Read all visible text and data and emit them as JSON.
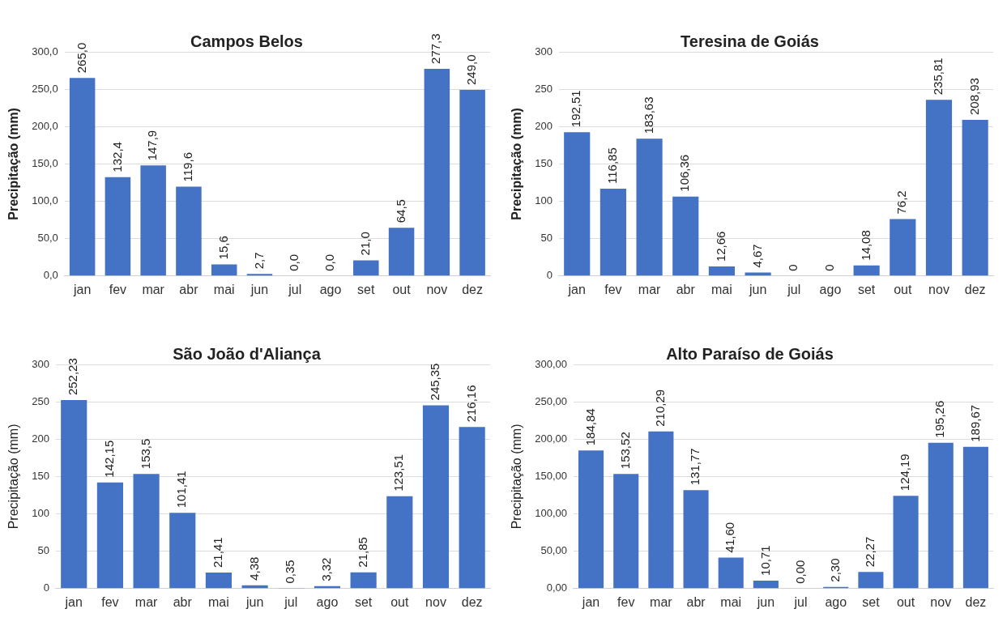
{
  "chart_data": [
    {
      "type": "bar",
      "title": "Campos Belos",
      "ylabel": "Precipitação (mm)",
      "categories": [
        "jan",
        "fev",
        "mar",
        "abr",
        "mai",
        "jun",
        "jul",
        "ago",
        "set",
        "out",
        "nov",
        "dez"
      ],
      "series": [
        {
          "color": "#4472c4",
          "values": [
            265.0,
            132.4,
            147.9,
            119.6,
            15.6,
            2.7,
            0.0,
            0.0,
            21.0,
            64.5,
            277.3,
            249.0
          ],
          "value_labels": [
            "265,0",
            "132,4",
            "147,9",
            "119,6",
            "15,6",
            "2,7",
            "0,0",
            "0,0",
            "21,0",
            "64,5",
            "277,3",
            "249,0"
          ]
        }
      ],
      "ylim": [
        0,
        300
      ],
      "yticks": [
        {
          "value": 0,
          "label": "0,0"
        },
        {
          "value": 50,
          "label": "50,0"
        },
        {
          "value": 100,
          "label": "100,0"
        },
        {
          "value": 150,
          "label": "150,0"
        },
        {
          "value": 200,
          "label": "200,0"
        },
        {
          "value": 250,
          "label": "250,0"
        },
        {
          "value": 300,
          "label": "300,0"
        }
      ],
      "grid": "y",
      "legend": false
    },
    {
      "type": "bar",
      "title": "Teresina de Goiás",
      "ylabel": "Precipitação (mm)",
      "categories": [
        "jan",
        "fev",
        "mar",
        "abr",
        "mai",
        "jun",
        "jul",
        "ago",
        "set",
        "out",
        "nov",
        "dez"
      ],
      "series": [
        {
          "color": "#4472c4",
          "values": [
            192.51,
            116.85,
            183.63,
            106.36,
            12.66,
            4.67,
            0,
            0,
            14.08,
            76.2,
            235.81,
            208.93
          ],
          "value_labels": [
            "192,51",
            "116,85",
            "183,63",
            "106,36",
            "12,66",
            "4,67",
            "0",
            "0",
            "14,08",
            "76,2",
            "235,81",
            "208,93"
          ]
        }
      ],
      "ylim": [
        0,
        300
      ],
      "yticks": [
        0,
        50,
        100,
        150,
        200,
        250,
        300
      ],
      "grid": "y",
      "legend": false
    },
    {
      "type": "bar",
      "title": "São João d'Aliança",
      "ylabel": "Precipitação (mm)",
      "categories": [
        "jan",
        "fev",
        "mar",
        "abr",
        "mai",
        "jun",
        "jul",
        "ago",
        "set",
        "out",
        "nov",
        "dez"
      ],
      "series": [
        {
          "color": "#4472c4",
          "values": [
            252.23,
            142.15,
            153.5,
            101.41,
            21.41,
            4.38,
            0.35,
            3.32,
            21.85,
            123.51,
            245.35,
            216.16
          ],
          "value_labels": [
            "252,23",
            "142,15",
            "153,5",
            "101,41",
            "21,41",
            "4,38",
            "0,35",
            "3,32",
            "21,85",
            "123,51",
            "245,35",
            "216,16"
          ]
        }
      ],
      "ylim": [
        0,
        300
      ],
      "yticks": [
        0,
        50,
        100,
        150,
        200,
        250,
        300
      ],
      "grid": "y",
      "legend": false
    },
    {
      "type": "bar",
      "title": "Alto Paraíso de Goiás",
      "ylabel": "Precipitação (mm)",
      "categories": [
        "jan",
        "fev",
        "mar",
        "abr",
        "mai",
        "jun",
        "jul",
        "ago",
        "set",
        "out",
        "nov",
        "dez"
      ],
      "series": [
        {
          "color": "#4472c4",
          "values": [
            184.84,
            153.52,
            210.29,
            131.77,
            41.6,
            10.71,
            0.0,
            2.3,
            22.27,
            124.19,
            195.26,
            189.67
          ],
          "value_labels": [
            "184,84",
            "153,52",
            "210,29",
            "131,77",
            "41,60",
            "10,71",
            "0,00",
            "2,30",
            "22,27",
            "124,19",
            "195,26",
            "189,67"
          ]
        }
      ],
      "ylim": [
        0,
        300
      ],
      "yticks": [
        {
          "value": 0,
          "label": "0,00"
        },
        {
          "value": 50,
          "label": "50,00"
        },
        {
          "value": 100,
          "label": "100,00"
        },
        {
          "value": 150,
          "label": "150,00"
        },
        {
          "value": 200,
          "label": "200,00"
        },
        {
          "value": 250,
          "label": "250,00"
        },
        {
          "value": 300,
          "label": "300,00"
        }
      ],
      "grid": "y",
      "legend": false
    }
  ]
}
